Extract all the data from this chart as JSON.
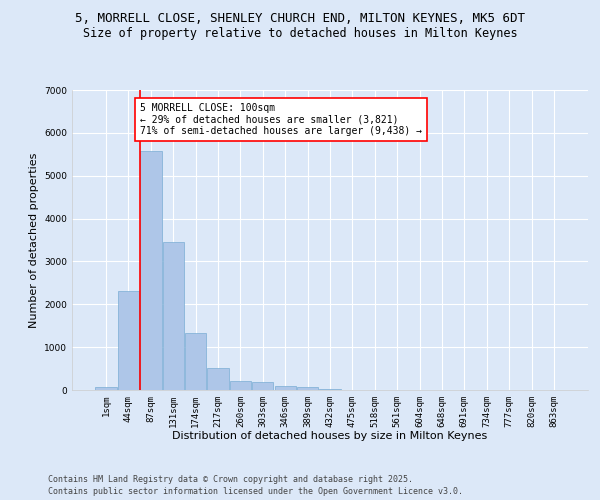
{
  "title_line1": "5, MORRELL CLOSE, SHENLEY CHURCH END, MILTON KEYNES, MK5 6DT",
  "title_line2": "Size of property relative to detached houses in Milton Keynes",
  "xlabel": "Distribution of detached houses by size in Milton Keynes",
  "ylabel": "Number of detached properties",
  "categories": [
    "1sqm",
    "44sqm",
    "87sqm",
    "131sqm",
    "174sqm",
    "217sqm",
    "260sqm",
    "303sqm",
    "346sqm",
    "389sqm",
    "432sqm",
    "475sqm",
    "518sqm",
    "561sqm",
    "604sqm",
    "648sqm",
    "691sqm",
    "734sqm",
    "777sqm",
    "820sqm",
    "863sqm"
  ],
  "values": [
    70,
    2300,
    5580,
    3460,
    1320,
    520,
    210,
    190,
    90,
    60,
    30,
    0,
    0,
    0,
    0,
    0,
    0,
    0,
    0,
    0,
    0
  ],
  "bar_color": "#aec6e8",
  "bar_edge_color": "#7aadd4",
  "vline_x": 2,
  "vline_color": "red",
  "annotation_text": "5 MORRELL CLOSE: 100sqm\n← 29% of detached houses are smaller (3,821)\n71% of semi-detached houses are larger (9,438) →",
  "annotation_box_color": "white",
  "annotation_box_edge": "red",
  "ylim": [
    0,
    7000
  ],
  "yticks": [
    0,
    1000,
    2000,
    3000,
    4000,
    5000,
    6000,
    7000
  ],
  "background_color": "#dce8f8",
  "grid_color": "white",
  "footer_line1": "Contains HM Land Registry data © Crown copyright and database right 2025.",
  "footer_line2": "Contains public sector information licensed under the Open Government Licence v3.0.",
  "title_fontsize": 9,
  "subtitle_fontsize": 8.5,
  "axis_label_fontsize": 8,
  "tick_fontsize": 6.5,
  "annotation_fontsize": 7,
  "footer_fontsize": 6
}
